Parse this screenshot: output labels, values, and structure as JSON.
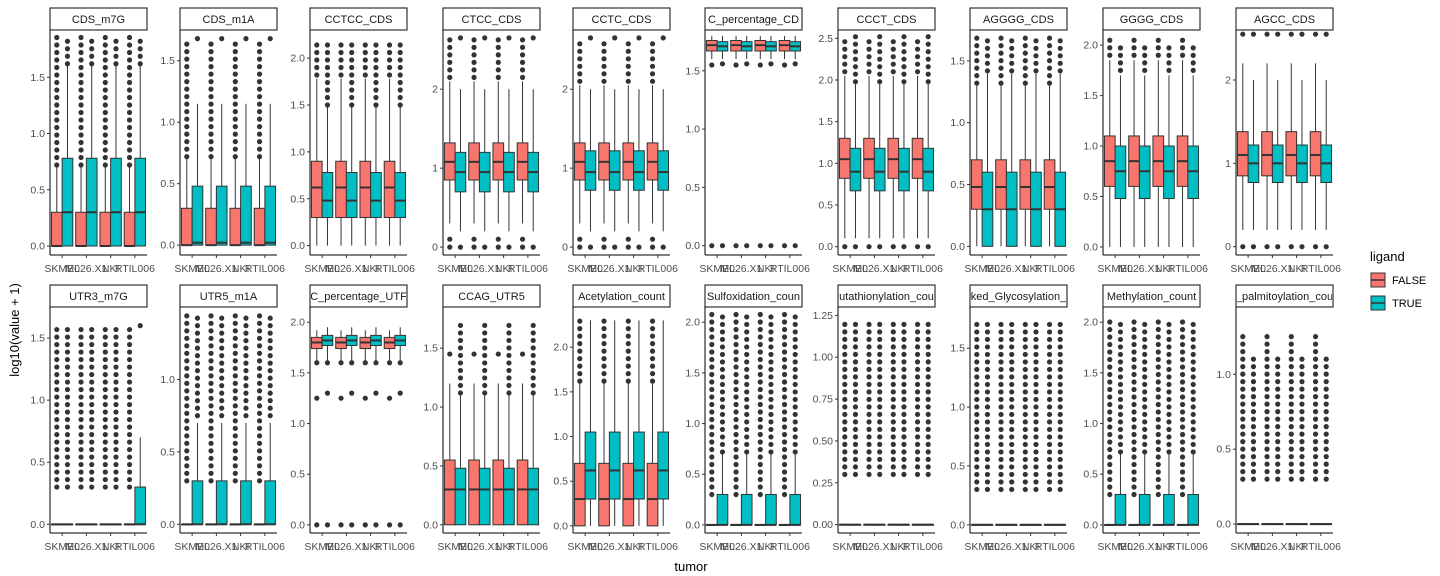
{
  "chart_data": {
    "type": "box",
    "xlabel": "tumor",
    "ylabel": "log10(value + 1)",
    "categories": [
      "SKMEL",
      "M026",
      "NKI",
      "RTIL006"
    ],
    "tick_labels": [
      "SKMEL",
      "M026.X1",
      "NKI",
      "RTIL006"
    ],
    "legend": {
      "title": "ligand",
      "placement": "right",
      "entries": [
        {
          "label": "FALSE",
          "color": "#F8766D"
        },
        {
          "label": "TRUE",
          "color": "#00BFC4"
        }
      ]
    },
    "panels": [
      {
        "title": "CDS_m7G",
        "ylim": [
          -0.08,
          1.92
        ],
        "yticks": [
          0,
          0.5,
          1.0,
          1.5
        ],
        "ytick_labels": [
          "0.0",
          "0.5",
          "1.0",
          "1.5"
        ],
        "box_false": {
          "min": 0,
          "q1": 0,
          "median": 0,
          "q3": 0.3,
          "max": 0.7
        },
        "box_true": {
          "min": 0,
          "q1": 0,
          "median": 0.3,
          "q3": 0.78,
          "max": 1.6
        },
        "outliers_false": [
          0.72,
          1.88
        ],
        "outliers_true": [
          1.62,
          1.88
        ]
      },
      {
        "title": "CDS_m1A",
        "ylim": [
          -0.08,
          1.75
        ],
        "yticks": [
          0,
          0.5,
          1.0,
          1.5
        ],
        "ytick_labels": [
          "0.0",
          "0.5",
          "1.0",
          "1.5"
        ],
        "box_false": {
          "min": 0,
          "q1": 0,
          "median": 0,
          "q3": 0.3,
          "max": 0.7
        },
        "box_true": {
          "min": 0,
          "q1": 0,
          "median": 0.02,
          "q3": 0.48,
          "max": 1.15
        },
        "outliers_false": [
          0.72,
          1.68
        ],
        "outliers_true": [
          1.15,
          1.68
        ]
      },
      {
        "title": "CCTCC_CDS",
        "ylim": [
          -0.1,
          2.3
        ],
        "yticks": [
          0,
          0.5,
          1.0,
          1.5,
          2.0
        ],
        "ytick_labels": [
          "0.0",
          "0.5",
          "1.0",
          "1.5",
          "2.0"
        ],
        "box_false": {
          "min": 0,
          "q1": 0.3,
          "median": 0.62,
          "q3": 0.9,
          "max": 1.78
        },
        "box_true": {
          "min": 0,
          "q1": 0.3,
          "median": 0.48,
          "q3": 0.78,
          "max": 1.48
        },
        "outliers_false": [
          1.82,
          2.2
        ],
        "outliers_true": [
          1.5,
          2.2
        ]
      },
      {
        "title": "CTCC_CDS",
        "ylim": [
          -0.1,
          2.75
        ],
        "yticks": [
          0,
          1,
          2
        ],
        "ytick_labels": [
          "0",
          "1",
          "2"
        ],
        "box_false": {
          "min": 0.3,
          "q1": 0.85,
          "median": 1.08,
          "q3": 1.32,
          "max": 2.1
        },
        "box_true": {
          "min": 0.2,
          "q1": 0.7,
          "median": 0.95,
          "q3": 1.2,
          "max": 2.0
        },
        "outliers_false": [
          0.0,
          0.1,
          2.15,
          2.65
        ],
        "outliers_true": [
          0.0,
          2.0,
          2.65
        ]
      },
      {
        "title": "CCTC_CDS",
        "ylim": [
          -0.1,
          2.75
        ],
        "yticks": [
          0,
          1,
          2
        ],
        "ytick_labels": [
          "0",
          "1",
          "2"
        ],
        "box_false": {
          "min": 0.3,
          "q1": 0.85,
          "median": 1.08,
          "q3": 1.32,
          "max": 2.05
        },
        "box_true": {
          "min": 0.2,
          "q1": 0.72,
          "median": 0.95,
          "q3": 1.22,
          "max": 2.0
        },
        "outliers_false": [
          0.0,
          0.1,
          2.1,
          2.65
        ],
        "outliers_true": [
          0.0,
          2.0,
          2.65
        ]
      },
      {
        "title": "C_percentage_CD",
        "ylim": [
          -0.08,
          1.85
        ],
        "yticks": [
          0,
          0.5,
          1.0,
          1.5
        ],
        "ytick_labels": [
          "0.0",
          "0.5",
          "1.0",
          "1.5"
        ],
        "box_false": {
          "min": 1.6,
          "q1": 1.67,
          "median": 1.72,
          "q3": 1.76,
          "max": 1.8
        },
        "box_true": {
          "min": 1.6,
          "q1": 1.67,
          "median": 1.71,
          "q3": 1.75,
          "max": 1.8
        },
        "outliers_false": [
          0.0,
          1.55
        ],
        "outliers_true": [
          0.0,
          1.56
        ]
      },
      {
        "title": "CCCT_CDS",
        "ylim": [
          -0.1,
          2.6
        ],
        "yticks": [
          0,
          0.5,
          1.0,
          1.5,
          2.0,
          2.5
        ],
        "ytick_labels": [
          "0.0",
          "0.5",
          "1.0",
          "1.5",
          "2.0",
          "2.5"
        ],
        "box_false": {
          "min": 0.1,
          "q1": 0.82,
          "median": 1.05,
          "q3": 1.3,
          "max": 2.05
        },
        "box_true": {
          "min": 0.1,
          "q1": 0.67,
          "median": 0.9,
          "q3": 1.18,
          "max": 1.95
        },
        "outliers_false": [
          0.0,
          2.1,
          2.52
        ],
        "outliers_true": [
          0.0,
          1.98,
          2.52
        ]
      },
      {
        "title": "AGGGG_CDS",
        "ylim": [
          -0.07,
          1.75
        ],
        "yticks": [
          0,
          0.5,
          1.0,
          1.5
        ],
        "ytick_labels": [
          "0.0",
          "0.5",
          "1.0",
          "1.5"
        ],
        "box_false": {
          "min": 0,
          "q1": 0.3,
          "median": 0.48,
          "q3": 0.7,
          "max": 1.3
        },
        "box_true": {
          "min": 0,
          "q1": 0,
          "median": 0.3,
          "q3": 0.6,
          "max": 1.4
        },
        "outliers_false": [
          1.32,
          1.7
        ],
        "outliers_true": [
          1.42,
          1.7
        ]
      },
      {
        "title": "GGGG_CDS",
        "ylim": [
          -0.08,
          2.15
        ],
        "yticks": [
          0,
          0.5,
          1.0,
          1.5,
          2.0
        ],
        "ytick_labels": [
          "0.0",
          "0.5",
          "1.0",
          "1.5",
          "2.0"
        ],
        "box_false": {
          "min": 0,
          "q1": 0.6,
          "median": 0.85,
          "q3": 1.1,
          "max": 1.85
        },
        "box_true": {
          "min": 0,
          "q1": 0.48,
          "median": 0.75,
          "q3": 1.0,
          "max": 1.7
        },
        "outliers_false": [
          1.9,
          2.1
        ],
        "outliers_true": [
          1.75,
          2.0
        ]
      },
      {
        "title": "AGCC_CDS",
        "ylim": [
          -0.1,
          2.6
        ],
        "yticks": [
          0,
          1,
          2
        ],
        "ytick_labels": [
          "0",
          "1",
          "2"
        ],
        "box_false": {
          "min": 0.2,
          "q1": 0.85,
          "median": 1.1,
          "q3": 1.38,
          "max": 2.2
        },
        "box_true": {
          "min": 0.2,
          "q1": 0.77,
          "median": 1.0,
          "q3": 1.22,
          "max": 2.0
        },
        "outliers_false": [
          0.0,
          2.2,
          2.55
        ],
        "outliers_true": [
          0.0,
          2.0,
          2.55
        ]
      },
      {
        "title": "UTR3_m7G",
        "ylim": [
          -0.07,
          1.75
        ],
        "yticks": [
          0,
          0.5,
          1.0,
          1.5
        ],
        "ytick_labels": [
          "0.0",
          "0.5",
          "1.0",
          "1.5"
        ],
        "box_false": {
          "min": 0,
          "q1": 0,
          "median": 0,
          "q3": 0,
          "max": 0
        },
        "box_true": {
          "min": 0,
          "q1": 0,
          "median": 0,
          "q3": 0,
          "max": 0
        },
        "box_true_last": {
          "min": 0,
          "q1": 0,
          "median": 0,
          "q3": 0.3,
          "max": 0.7
        },
        "outliers_false": [
          0.3,
          1.6
        ],
        "outliers_true": [
          0.3,
          1.6
        ]
      },
      {
        "title": "UTR5_m1A",
        "ylim": [
          -0.06,
          1.5
        ],
        "yticks": [
          0,
          0.5,
          1.0
        ],
        "ytick_labels": [
          "0.0",
          "0.5",
          "1.0"
        ],
        "box_false": {
          "min": 0,
          "q1": 0,
          "median": 0,
          "q3": 0,
          "max": 0
        },
        "box_true": {
          "min": 0,
          "q1": 0,
          "median": 0,
          "q3": 0.3,
          "max": 0.7
        },
        "outliers_false": [
          0.3,
          1.45
        ],
        "outliers_true": [
          0.75,
          1.45
        ]
      },
      {
        "title": "C_percentage_UTF",
        "ylim": [
          -0.08,
          2.15
        ],
        "yticks": [
          0,
          0.5,
          1.0,
          1.5,
          2.0
        ],
        "ytick_labels": [
          "0.0",
          "0.5",
          "1.0",
          "1.5",
          "2.0"
        ],
        "box_false": {
          "min": 1.62,
          "q1": 1.74,
          "median": 1.8,
          "q3": 1.85,
          "max": 1.92
        },
        "box_true": {
          "min": 1.62,
          "q1": 1.77,
          "median": 1.82,
          "q3": 1.87,
          "max": 1.95
        },
        "outliers_false": [
          0.0,
          1.25,
          1.6
        ],
        "outliers_true": [
          0.0,
          1.3,
          1.6
        ]
      },
      {
        "title": "CCAG_UTR5",
        "ylim": [
          -0.07,
          1.85
        ],
        "yticks": [
          0,
          0.5,
          1.0,
          1.5
        ],
        "ytick_labels": [
          "0.0",
          "0.5",
          "1.0",
          "1.5"
        ],
        "box_false": {
          "min": 0,
          "q1": 0,
          "median": 0.3,
          "q3": 0.55,
          "max": 1.2
        },
        "box_true": {
          "min": 0,
          "q1": 0,
          "median": 0.3,
          "q3": 0.48,
          "max": 1.1
        },
        "outliers_false": [
          1.2,
          1.45
        ],
        "outliers_true": [
          1.12,
          1.7
        ]
      },
      {
        "title": "Acetylation_count",
        "ylim": [
          -0.08,
          2.45
        ],
        "yticks": [
          0,
          0.5,
          1.0,
          1.5,
          2.0
        ],
        "ytick_labels": [
          "0.0",
          "0.5",
          "1.0",
          "1.5",
          "2.0"
        ],
        "box_false": {
          "min": 0,
          "q1": 0,
          "median": 0.3,
          "q3": 0.7,
          "max": 1.6
        },
        "box_true": {
          "min": 0,
          "q1": 0.3,
          "median": 0.62,
          "q3": 1.05,
          "max": 2.3
        },
        "outliers_false": [
          1.62,
          2.3
        ],
        "outliers_true": [
          2.3
        ]
      },
      {
        "title": "Sulfoxidation_coun",
        "ylim": [
          -0.08,
          2.15
        ],
        "yticks": [
          0,
          0.5,
          1.0,
          1.5,
          2.0
        ],
        "ytick_labels": [
          "0.0",
          "0.5",
          "1.0",
          "1.5",
          "2.0"
        ],
        "box_false": {
          "min": 0,
          "q1": 0,
          "median": 0,
          "q3": 0,
          "max": 0
        },
        "box_true": {
          "min": 0,
          "q1": 0,
          "median": 0,
          "q3": 0.3,
          "max": 0.7
        },
        "outliers_false": [
          0.3,
          1.6,
          2.1
        ],
        "outliers_true": [
          0.72,
          1.6,
          2.1
        ]
      },
      {
        "title": "utathionylation_cou",
        "ylim": [
          -0.05,
          1.3
        ],
        "yticks": [
          0,
          0.25,
          0.5,
          0.75,
          1.0,
          1.25
        ],
        "ytick_labels": [
          "0.00",
          "0.25",
          "0.50",
          "0.75",
          "1.00",
          "1.25"
        ],
        "box_false": {
          "min": 0,
          "q1": 0,
          "median": 0,
          "q3": 0,
          "max": 0
        },
        "box_true": {
          "min": 0,
          "q1": 0,
          "median": 0,
          "q3": 0,
          "max": 0
        },
        "outliers_false": [
          0.3,
          1.2
        ],
        "outliers_true": [
          0.3,
          1.2
        ]
      },
      {
        "title": "ked_Glycosylation_",
        "ylim": [
          -0.07,
          1.85
        ],
        "yticks": [
          0,
          0.5,
          1.0,
          1.5
        ],
        "ytick_labels": [
          "0.0",
          "0.5",
          "1.0",
          "1.5"
        ],
        "box_false": {
          "min": 0,
          "q1": 0,
          "median": 0,
          "q3": 0,
          "max": 0
        },
        "box_true": {
          "min": 0,
          "q1": 0,
          "median": 0,
          "q3": 0,
          "max": 0
        },
        "outliers_false": [
          0.3,
          1.75
        ],
        "outliers_true": [
          0.3,
          1.75
        ]
      },
      {
        "title": "Methylation_count",
        "ylim": [
          -0.08,
          2.15
        ],
        "yticks": [
          0,
          0.5,
          1.0,
          1.5,
          2.0
        ],
        "ytick_labels": [
          "0.0",
          "0.5",
          "1.0",
          "1.5",
          "2.0"
        ],
        "box_false": {
          "min": 0,
          "q1": 0,
          "median": 0,
          "q3": 0,
          "max": 0
        },
        "box_true": {
          "min": 0,
          "q1": 0,
          "median": 0,
          "q3": 0.3,
          "max": 0.7
        },
        "outliers_false": [
          0.3,
          1.75,
          2.05
        ],
        "outliers_true": [
          0.72,
          1.75,
          2.05
        ]
      },
      {
        "title": "_palmitoylation_cou",
        "ylim": [
          -0.06,
          1.45
        ],
        "yticks": [
          0,
          0.5,
          1.0
        ],
        "ytick_labels": [
          "0.0",
          "0.5",
          "1.0"
        ],
        "box_false": {
          "min": 0,
          "q1": 0,
          "median": 0,
          "q3": 0,
          "max": 0
        },
        "box_true": {
          "min": 0,
          "q1": 0,
          "median": 0,
          "q3": 0,
          "max": 0
        },
        "outliers_false": [
          0.3,
          0.78,
          1.3
        ],
        "outliers_true": [
          0.3,
          0.78,
          1.15
        ]
      }
    ]
  }
}
